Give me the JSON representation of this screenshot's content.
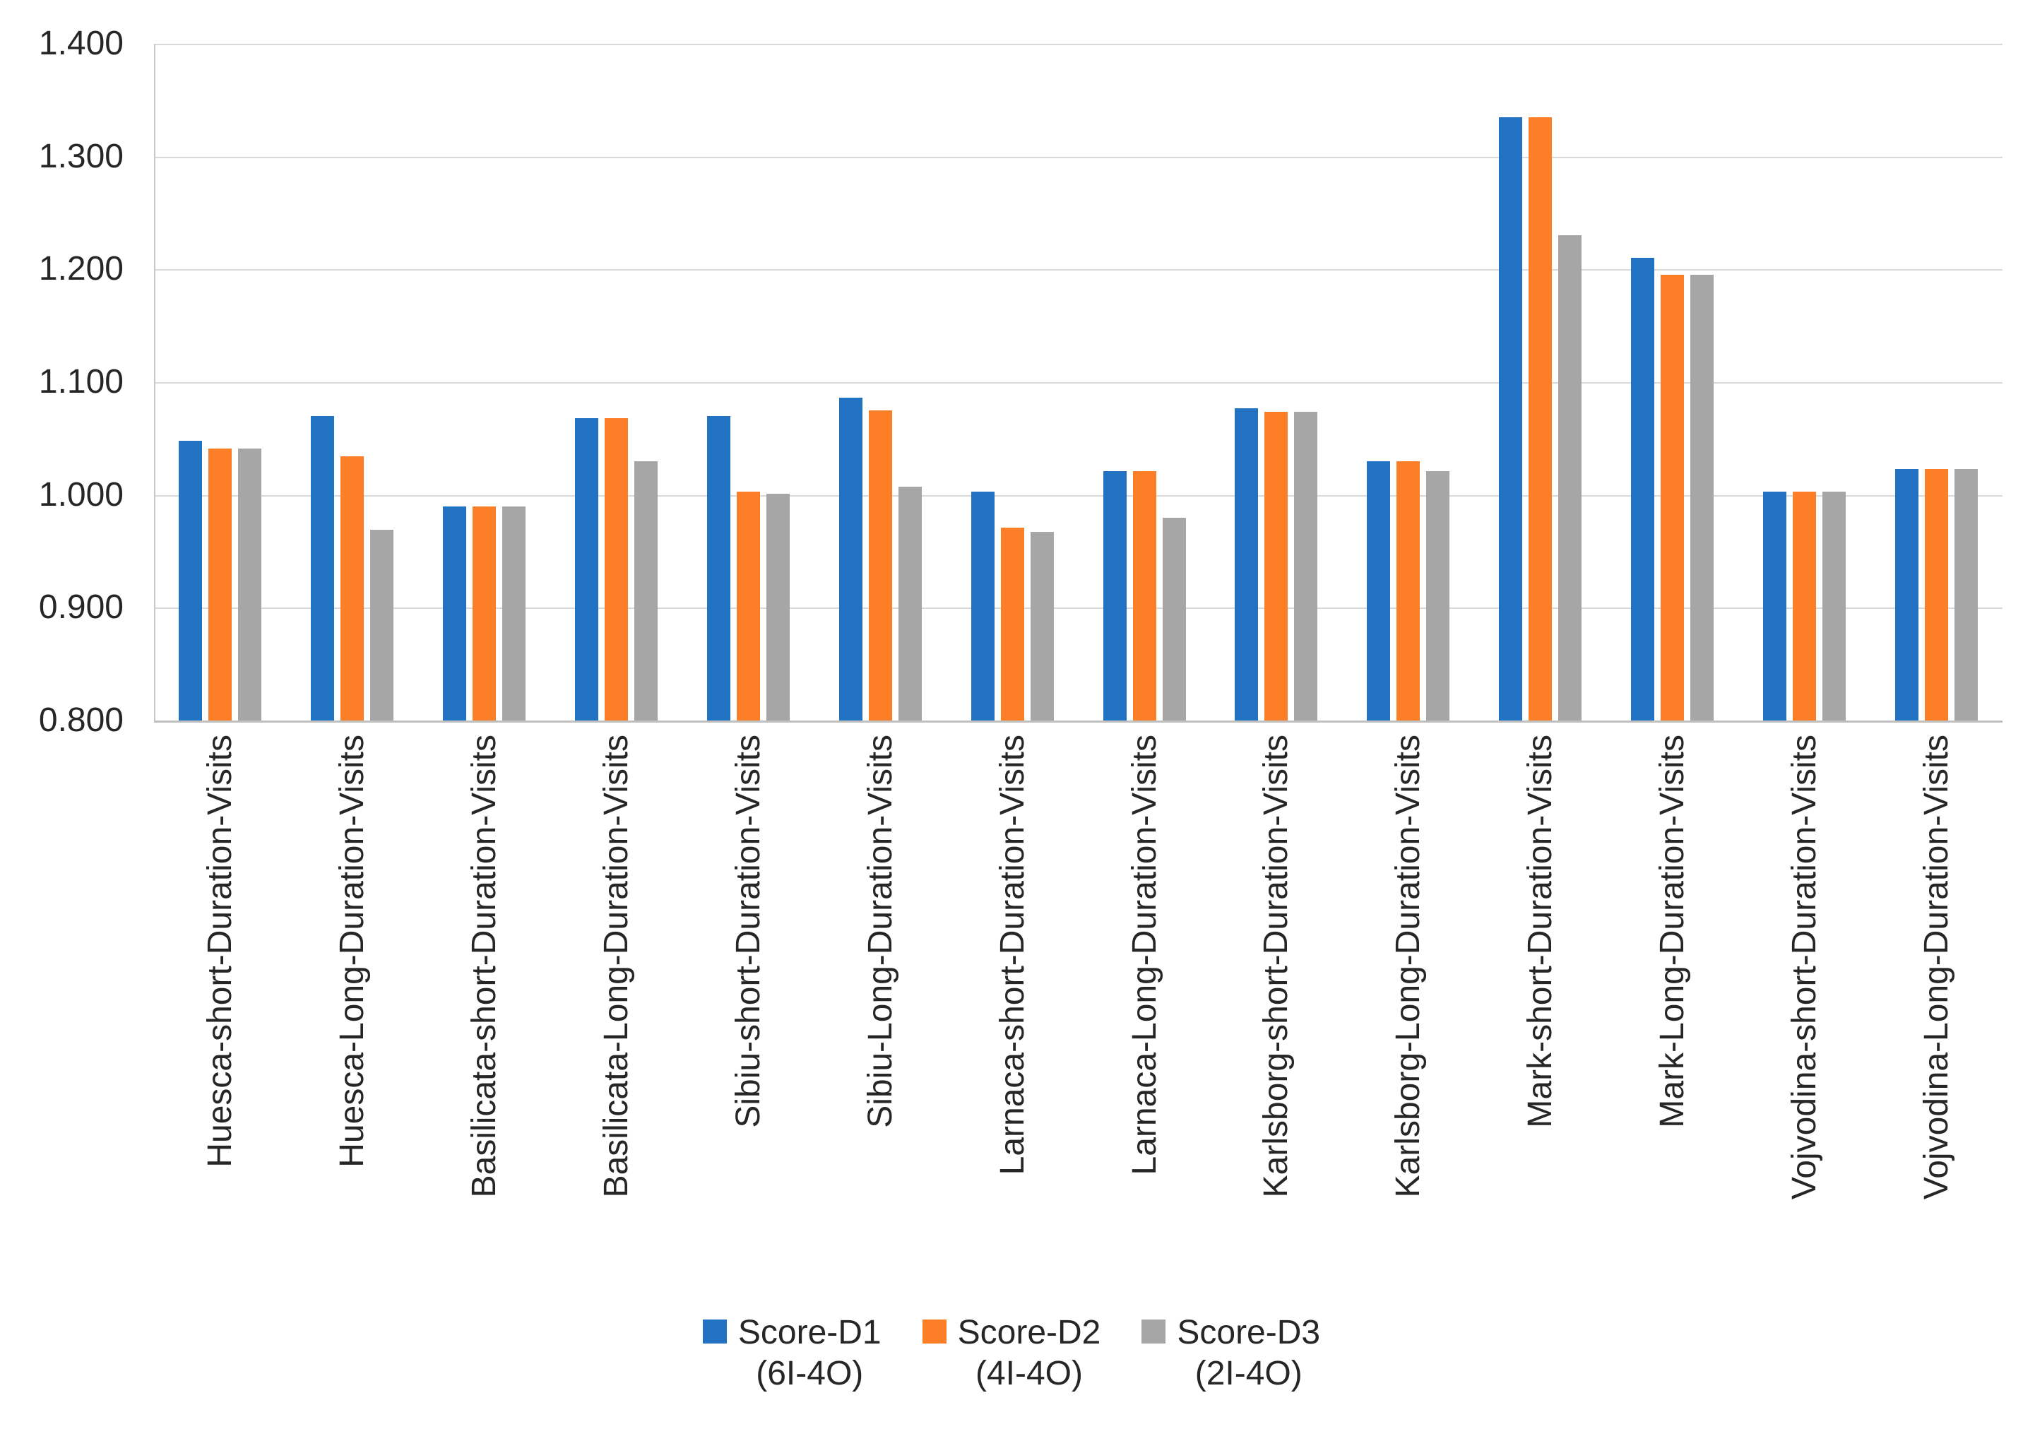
{
  "chart_data": {
    "type": "bar",
    "title": "",
    "xlabel": "",
    "ylabel": "",
    "grid": true,
    "legend_position": "bottom",
    "categories": [
      "Huesca-short-Duration-Visits",
      "Huesca-Long-Duration-Visits",
      "Basilicata-short-Duration-Visits",
      "Basilicata-Long-Duration-Visits",
      "Sibiu-short-Duration-Visits",
      "Sibiu-Long-Duration-Visits",
      "Larnaca-short-Duration-Visits",
      "Larnaca-Long-Duration-Visits",
      "Karlsborg-short-Duration-Visits",
      "Karlsborg-Long-Duration-Visits",
      "Mark-short-Duration-Visits",
      "Mark-Long-Duration-Visits",
      "Vojvodina-short-Duration-Visits",
      "Vojvodina-Long-Duration-Visits"
    ],
    "series": [
      {
        "name": "Score-D1",
        "qualifier": "(6I-4O)",
        "color": "#2272C3",
        "values": [
          1.048,
          1.07,
          0.99,
          1.068,
          1.07,
          1.086,
          1.003,
          1.021,
          1.077,
          1.03,
          1.335,
          1.21,
          1.003,
          1.023
        ]
      },
      {
        "name": "Score-D2",
        "qualifier": "(4I-4O)",
        "color": "#FC7E27",
        "values": [
          1.041,
          1.034,
          0.99,
          1.068,
          1.003,
          1.075,
          0.971,
          1.021,
          1.074,
          1.03,
          1.335,
          1.195,
          1.003,
          1.023
        ]
      },
      {
        "name": "Score-D3",
        "qualifier": "(2I-4O)",
        "color": "#A6A6A6",
        "values": [
          1.041,
          0.969,
          0.99,
          1.03,
          1.001,
          1.007,
          0.967,
          0.98,
          1.074,
          1.021,
          1.23,
          1.195,
          1.003,
          1.023
        ]
      }
    ],
    "y_axis": {
      "min": 0.8,
      "max": 1.4,
      "step": 0.1,
      "tick_labels": [
        "0.800",
        "0.900",
        "1.000",
        "1.100",
        "1.200",
        "1.300",
        "1.400"
      ]
    }
  },
  "colors": {
    "gridline": "#d9d9d9",
    "axis_line": "#bfbfbf",
    "text": "#262626",
    "background": "#ffffff"
  }
}
